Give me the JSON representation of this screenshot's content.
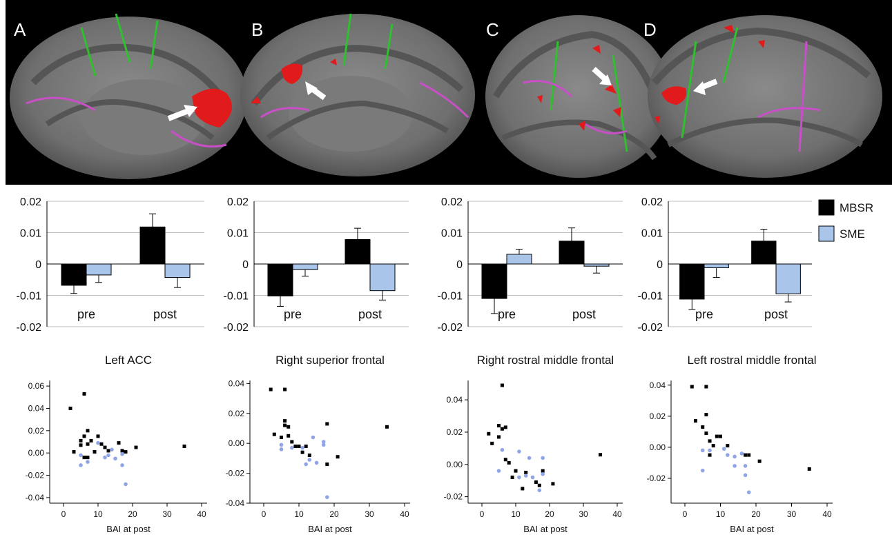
{
  "figure": {
    "panel_labels": [
      "A",
      "B",
      "C",
      "D"
    ]
  },
  "legend": {
    "items": [
      {
        "label": "MBSR",
        "color": "#000000"
      },
      {
        "label": "SME",
        "color": "#a9c6ea"
      }
    ]
  },
  "chart_data": [
    {
      "type": "bar",
      "panel": "A",
      "categories": [
        "pre",
        "post"
      ],
      "series": [
        {
          "name": "MBSR",
          "color": "#000000",
          "values": [
            -0.0068,
            0.0118
          ],
          "errors": [
            0.0026,
            0.0042
          ]
        },
        {
          "name": "SME",
          "color": "#a9c6ea",
          "values": [
            -0.0035,
            -0.0043
          ],
          "errors": [
            0.0024,
            0.0032
          ]
        }
      ],
      "ylim": [
        -0.02,
        0.02
      ],
      "yticks": [
        "0.02",
        "0.01",
        "0",
        "-0.01",
        "-0.02"
      ]
    },
    {
      "type": "bar",
      "panel": "B",
      "categories": [
        "pre",
        "post"
      ],
      "series": [
        {
          "name": "MBSR",
          "color": "#000000",
          "values": [
            -0.0102,
            0.0078
          ],
          "errors": [
            0.0033,
            0.0036
          ]
        },
        {
          "name": "SME",
          "color": "#a9c6ea",
          "values": [
            -0.0018,
            -0.0085
          ],
          "errors": [
            0.0021,
            0.003
          ]
        }
      ],
      "ylim": [
        -0.02,
        0.02
      ],
      "yticks": [
        "0.02",
        "0.01",
        "0",
        "-0.01",
        "-0.02"
      ]
    },
    {
      "type": "bar",
      "panel": "C",
      "categories": [
        "pre",
        "post"
      ],
      "series": [
        {
          "name": "MBSR",
          "color": "#000000",
          "values": [
            -0.011,
            0.0073
          ],
          "errors": [
            0.0048,
            0.0042
          ]
        },
        {
          "name": "SME",
          "color": "#a9c6ea",
          "values": [
            0.0031,
            -0.0007
          ],
          "errors": [
            0.0016,
            0.0022
          ]
        }
      ],
      "ylim": [
        -0.02,
        0.02
      ],
      "yticks": [
        "0.02",
        "0.01",
        "0",
        "-0.01",
        "-0.02"
      ]
    },
    {
      "type": "bar",
      "panel": "D",
      "categories": [
        "pre",
        "post"
      ],
      "series": [
        {
          "name": "MBSR",
          "color": "#000000",
          "values": [
            -0.0112,
            0.0073
          ],
          "errors": [
            0.0033,
            0.0038
          ]
        },
        {
          "name": "SME",
          "color": "#a9c6ea",
          "values": [
            -0.0012,
            -0.0095
          ],
          "errors": [
            0.0031,
            0.0026
          ]
        }
      ],
      "ylim": [
        -0.02,
        0.02
      ],
      "yticks": [
        "0.02",
        "0.01",
        "0",
        "-0.01",
        "-0.02"
      ]
    },
    {
      "type": "scatter",
      "title": "Left ACC",
      "xlabel": "BAI at post",
      "xlim": [
        0,
        40
      ],
      "ylim": [
        -0.045,
        0.065
      ],
      "xticks": [
        "0",
        "10",
        "20",
        "30",
        "40"
      ],
      "yticks": [
        "0.06",
        "0.04",
        "0.02",
        "0.00",
        "-0.02",
        "-0.04"
      ],
      "series": [
        {
          "name": "MBSR",
          "color": "#000000",
          "points": [
            [
              2,
              0.04
            ],
            [
              3,
              0.001
            ],
            [
              5,
              0.011
            ],
            [
              5,
              0.007
            ],
            [
              6,
              0.053
            ],
            [
              6,
              0.015
            ],
            [
              6,
              -0.004
            ],
            [
              7,
              0.02
            ],
            [
              7,
              0.008
            ],
            [
              7,
              -0.004
            ],
            [
              8,
              0.011
            ],
            [
              9,
              0.001
            ],
            [
              10,
              0.015
            ],
            [
              11,
              0.008
            ],
            [
              12,
              0.005
            ],
            [
              13,
              0.002
            ],
            [
              16,
              0.009
            ],
            [
              17,
              0.002
            ],
            [
              18,
              0.001
            ],
            [
              21,
              0.005
            ],
            [
              35,
              0.006
            ]
          ]
        },
        {
          "name": "SME",
          "color": "#8fa5e6",
          "points": [
            [
              5,
              -0.002
            ],
            [
              5,
              -0.011
            ],
            [
              7,
              -0.008
            ],
            [
              10,
              0.009
            ],
            [
              12,
              -0.004
            ],
            [
              13,
              -0.002
            ],
            [
              14,
              0.003
            ],
            [
              15,
              -0.005
            ],
            [
              17,
              -0.001
            ],
            [
              17,
              -0.011
            ],
            [
              18,
              -0.028
            ]
          ]
        }
      ]
    },
    {
      "type": "scatter",
      "title": "Right superior frontal",
      "xlabel": "BAI at post",
      "xlim": [
        0,
        40
      ],
      "ylim": [
        -0.04,
        0.042
      ],
      "xticks": [
        "0",
        "10",
        "20",
        "30",
        "40"
      ],
      "yticks": [
        "0.04",
        "0.02",
        "0.00",
        "-0.02",
        "-0.04"
      ],
      "series": [
        {
          "name": "MBSR",
          "color": "#000000",
          "points": [
            [
              2,
              0.036
            ],
            [
              3,
              0.006
            ],
            [
              5,
              0.004
            ],
            [
              6,
              0.036
            ],
            [
              6,
              0.015
            ],
            [
              6,
              0.012
            ],
            [
              7,
              0.011
            ],
            [
              7,
              0.005
            ],
            [
              8,
              0.001
            ],
            [
              9,
              -0.002
            ],
            [
              10,
              -0.002
            ],
            [
              11,
              -0.006
            ],
            [
              12,
              -0.002
            ],
            [
              13,
              -0.008
            ],
            [
              18,
              0.013
            ],
            [
              18,
              -0.014
            ],
            [
              21,
              -0.009
            ],
            [
              35,
              0.011
            ]
          ]
        },
        {
          "name": "SME",
          "color": "#8fa5e6",
          "points": [
            [
              5,
              -0.001
            ],
            [
              5,
              -0.004
            ],
            [
              8,
              -0.003
            ],
            [
              11,
              -0.003
            ],
            [
              12,
              -0.014
            ],
            [
              13,
              -0.011
            ],
            [
              14,
              0.004
            ],
            [
              15,
              -0.013
            ],
            [
              17,
              -0.001
            ],
            [
              17,
              0.001
            ],
            [
              18,
              -0.036
            ]
          ]
        }
      ]
    },
    {
      "type": "scatter",
      "title": "Right rostral middle frontal",
      "xlabel": "BAI at post",
      "xlim": [
        0,
        40
      ],
      "ylim": [
        -0.024,
        0.052
      ],
      "xticks": [
        "0",
        "10",
        "20",
        "30",
        "40"
      ],
      "yticks": [
        "0.04",
        "0.02",
        "0.00",
        "-0.02"
      ],
      "series": [
        {
          "name": "MBSR",
          "color": "#000000",
          "points": [
            [
              2,
              0.019
            ],
            [
              3,
              0.013
            ],
            [
              5,
              0.024
            ],
            [
              5,
              0.017
            ],
            [
              6,
              0.049
            ],
            [
              6,
              0.022
            ],
            [
              7,
              0.023
            ],
            [
              7,
              0.003
            ],
            [
              8,
              0.001
            ],
            [
              9,
              -0.008
            ],
            [
              10,
              -0.004
            ],
            [
              12,
              -0.015
            ],
            [
              13,
              -0.005
            ],
            [
              16,
              -0.011
            ],
            [
              17,
              -0.013
            ],
            [
              18,
              -0.004
            ],
            [
              21,
              -0.012
            ],
            [
              35,
              0.006
            ]
          ]
        },
        {
          "name": "SME",
          "color": "#8fa5e6",
          "points": [
            [
              5,
              -0.004
            ],
            [
              6,
              0.009
            ],
            [
              11,
              0.008
            ],
            [
              11,
              -0.008
            ],
            [
              13,
              -0.007
            ],
            [
              14,
              0.004
            ],
            [
              15,
              -0.008
            ],
            [
              17,
              -0.016
            ],
            [
              18,
              0.004
            ],
            [
              18,
              -0.006
            ]
          ]
        }
      ]
    },
    {
      "type": "scatter",
      "title": "Left rostral middle frontal",
      "xlabel": "BAI at post",
      "xlim": [
        0,
        40
      ],
      "ylim": [
        -0.036,
        0.043
      ],
      "xticks": [
        "0",
        "10",
        "20",
        "30",
        "40"
      ],
      "yticks": [
        "0.04",
        "0.02",
        "0.00",
        "-0.02"
      ],
      "series": [
        {
          "name": "MBSR",
          "color": "#000000",
          "points": [
            [
              2,
              0.039
            ],
            [
              3,
              0.017
            ],
            [
              5,
              0.013
            ],
            [
              6,
              0.039
            ],
            [
              6,
              0.021
            ],
            [
              6,
              0.009
            ],
            [
              7,
              0.004
            ],
            [
              7,
              -0.005
            ],
            [
              8,
              0.001
            ],
            [
              9,
              0.007
            ],
            [
              10,
              0.007
            ],
            [
              12,
              0.001
            ],
            [
              17,
              -0.005
            ],
            [
              18,
              -0.005
            ],
            [
              21,
              -0.009
            ],
            [
              35,
              -0.014
            ]
          ]
        },
        {
          "name": "SME",
          "color": "#8fa5e6",
          "points": [
            [
              5,
              -0.002
            ],
            [
              5,
              -0.015
            ],
            [
              7,
              -0.002
            ],
            [
              11,
              -0.001
            ],
            [
              12,
              -0.005
            ],
            [
              14,
              -0.006
            ],
            [
              14,
              -0.012
            ],
            [
              16,
              -0.004
            ],
            [
              17,
              -0.012
            ],
            [
              17,
              -0.018
            ],
            [
              18,
              -0.029
            ]
          ]
        }
      ]
    }
  ]
}
